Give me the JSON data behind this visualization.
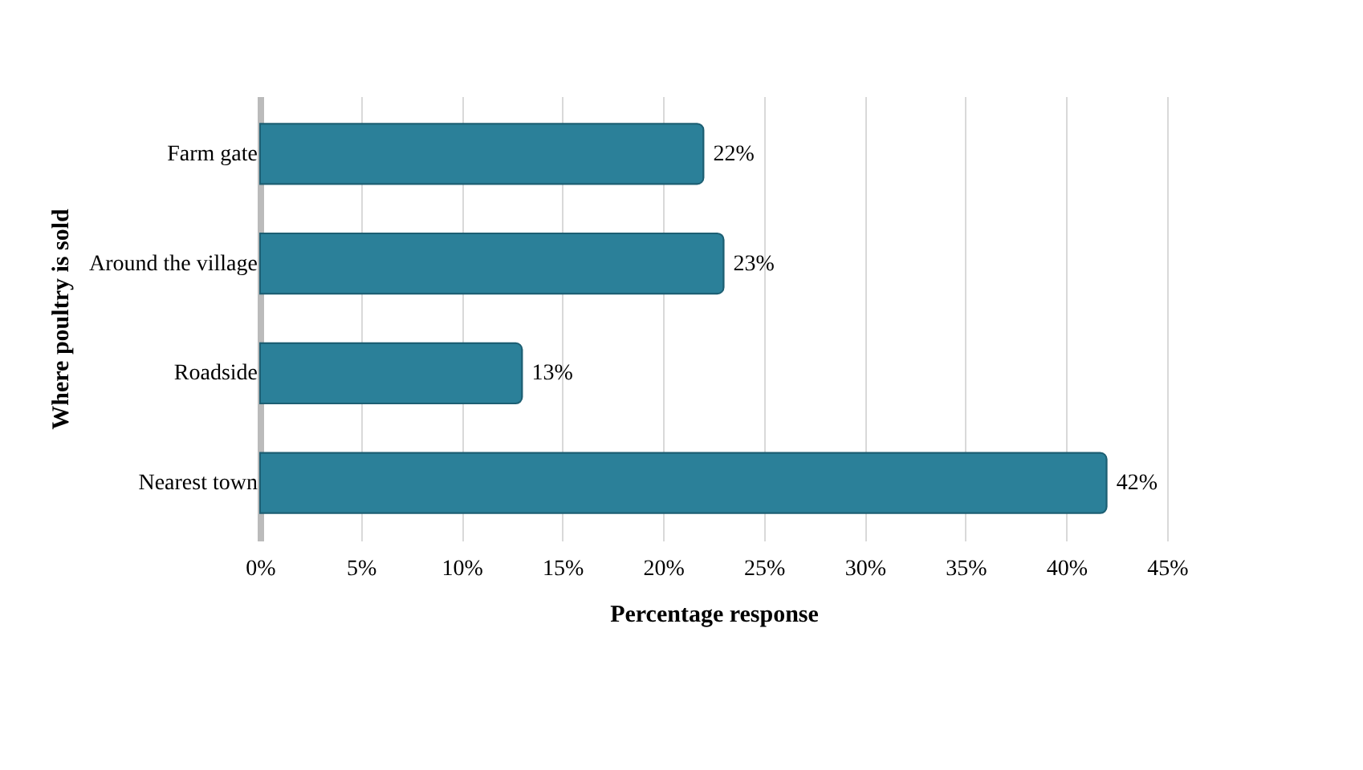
{
  "chart_data": {
    "type": "bar",
    "orientation": "horizontal",
    "xlabel": "Percentage response",
    "ylabel": "Where poultry is sold",
    "categories": [
      "Farm gate",
      "Around the village",
      "Roadside",
      "Nearest town"
    ],
    "values": [
      22,
      23,
      13,
      42
    ],
    "color": "#2b8099",
    "value_labels": [
      "22%",
      "23%",
      "13%",
      "42%"
    ],
    "xlim": [
      0,
      45
    ],
    "xticks": [
      {
        "value": 0,
        "label": "0%"
      },
      {
        "value": 5,
        "label": "5%"
      },
      {
        "value": 10,
        "label": "10%"
      },
      {
        "value": 15,
        "label": "15%"
      },
      {
        "value": 20,
        "label": "20%"
      },
      {
        "value": 25,
        "label": "25%"
      },
      {
        "value": 30,
        "label": "30%"
      },
      {
        "value": 35,
        "label": "35%"
      },
      {
        "value": 40,
        "label": "40%"
      },
      {
        "value": 45,
        "label": "45%"
      }
    ],
    "grid": "x"
  }
}
